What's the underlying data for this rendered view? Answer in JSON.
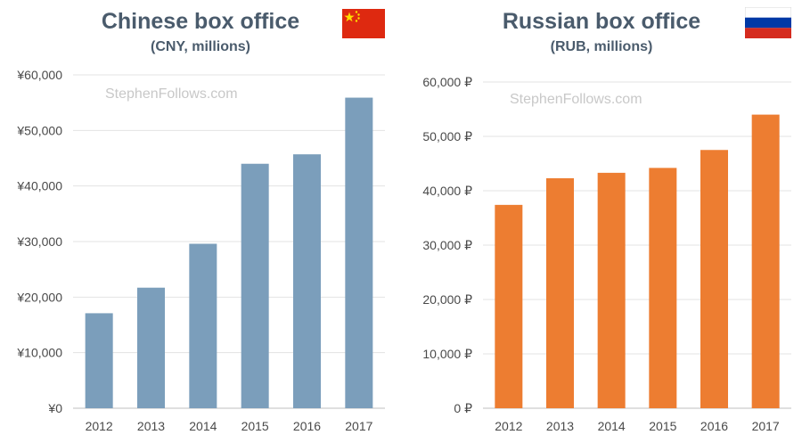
{
  "chart_data": [
    {
      "type": "bar",
      "title": "Chinese box office",
      "subtitle": "(CNY, millions)",
      "watermark": "StephenFollows.com",
      "flag": "china-flag",
      "categories": [
        "2012",
        "2013",
        "2014",
        "2015",
        "2016",
        "2017"
      ],
      "values": [
        17100,
        21700,
        29600,
        44000,
        45700,
        55900
      ],
      "ylim": [
        0,
        60000
      ],
      "yticks": [
        0,
        10000,
        20000,
        30000,
        40000,
        50000,
        60000
      ],
      "ytick_labels": [
        "¥0",
        "¥10,000",
        "¥20,000",
        "¥30,000",
        "¥40,000",
        "¥50,000",
        "¥60,000"
      ],
      "color": "#7b9ebb",
      "grid": true
    },
    {
      "type": "bar",
      "title": "Russian box office",
      "subtitle": "(RUB, millions)",
      "watermark": "StephenFollows.com",
      "flag": "russia-flag",
      "categories": [
        "2012",
        "2013",
        "2014",
        "2015",
        "2016",
        "2017"
      ],
      "values": [
        37400,
        42300,
        43300,
        44200,
        47500,
        54000
      ],
      "ylim": [
        0,
        60000
      ],
      "yticks": [
        0,
        10000,
        20000,
        30000,
        40000,
        50000,
        60000
      ],
      "ytick_labels": [
        "0 ₽",
        "10,000 ₽",
        "20,000 ₽",
        "30,000 ₽",
        "40,000 ₽",
        "50,000 ₽",
        "60,000 ₽"
      ],
      "color": "#ed7d31",
      "grid": true
    }
  ]
}
